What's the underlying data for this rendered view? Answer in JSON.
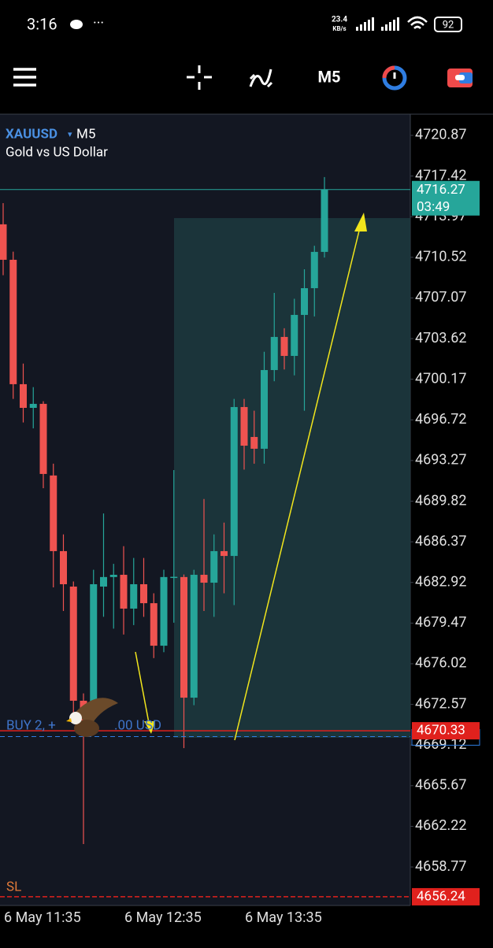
{
  "status_bar": {
    "time": "3:16",
    "net_speed": "23.4",
    "net_unit": "KB/s",
    "battery": "92"
  },
  "toolbar": {
    "timeframe": "M5"
  },
  "chart_data": {
    "type": "candlestick",
    "symbol": "XAUUSD",
    "timeframe": "M5",
    "title": "Gold vs US Dollar",
    "categories": [
      "6 May 11:35",
      null,
      null,
      null,
      null,
      null,
      null,
      null,
      null,
      null,
      null,
      null,
      "6 May 12:35",
      null,
      null,
      null,
      null,
      null,
      null,
      null,
      null,
      null,
      null,
      null,
      "6 May 13:35",
      null,
      null,
      null,
      null,
      null,
      null,
      null,
      null
    ],
    "open": [
      4713.32,
      4710.31,
      4699.75,
      4697.74,
      4698.08,
      4692.0,
      4685.58,
      4682.57,
      4672.88,
      4671.54,
      4682.57,
      4683.38,
      4683.57,
      4680.7,
      4682.77,
      4681.16,
      4677.55,
      4683.38,
      4683.38,
      4673.14,
      4683.57,
      4682.9,
      4685.58,
      4685.17,
      4697.81,
      4695.27,
      4694.27,
      4700.95,
      4703.76,
      4702.15,
      4705.63,
      4707.9,
      4710.98
    ],
    "high": [
      4715.12,
      4711.0,
      4701.5,
      4699.5,
      4698.3,
      4693.0,
      4687.0,
      4683.0,
      4673.5,
      4684.0,
      4688.78,
      4684.5,
      4686.0,
      4685.0,
      4685.0,
      4682.0,
      4684.0,
      4692.46,
      4683.6,
      4684.0,
      4690.0,
      4687.0,
      4688.0,
      4698.5,
      4698.5,
      4697.5,
      4702.5,
      4707.5,
      4704.5,
      4707.0,
      4709.5,
      4711.5,
      4717.33
    ],
    "low": [
      4709.0,
      4698.5,
      4696.5,
      4696.0,
      4690.92,
      4682.5,
      4680.5,
      4671.5,
      4660.71,
      4670.8,
      4680.0,
      4679.0,
      4678.5,
      4679.3,
      4680.0,
      4676.5,
      4677.0,
      4679.5,
      4668.86,
      4672.5,
      4680.5,
      4680.0,
      4682.0,
      4681.0,
      4692.5,
      4693.0,
      4693.0,
      4700.0,
      4701.0,
      4700.5,
      4697.5,
      4705.5,
      4710.5
    ],
    "close": [
      4710.31,
      4699.75,
      4697.74,
      4698.08,
      4692.13,
      4685.58,
      4682.77,
      4672.88,
      4670.5,
      4682.77,
      4683.38,
      4683.57,
      4680.7,
      4682.77,
      4681.16,
      4677.55,
      4683.38,
      4683.4,
      4673.14,
      4683.57,
      4682.9,
      4685.58,
      4685.17,
      4697.81,
      4694.53,
      4694.27,
      4700.95,
      4703.76,
      4702.15,
      4705.63,
      4707.9,
      4710.98,
      4716.27
    ],
    "up_color": "#26a69a",
    "down_color": "#ef5350",
    "ylim": [
      4655.5,
      4722.67
    ],
    "yticks": [
      4720.87,
      4717.42,
      4713.97,
      4710.52,
      4707.07,
      4703.62,
      4700.17,
      4696.72,
      4693.27,
      4689.82,
      4686.37,
      4682.92,
      4679.47,
      4676.02,
      4672.57,
      4669.12,
      4665.67,
      4662.22,
      4658.77
    ],
    "bid": 4716.27,
    "bid_timer": "03:49",
    "position": {
      "label": "BUY 2, +",
      "label_end": ".00 USD",
      "price": 4670.33,
      "open_price": 4669.84
    },
    "sl": {
      "label": "SL",
      "price": 4656.24
    }
  }
}
